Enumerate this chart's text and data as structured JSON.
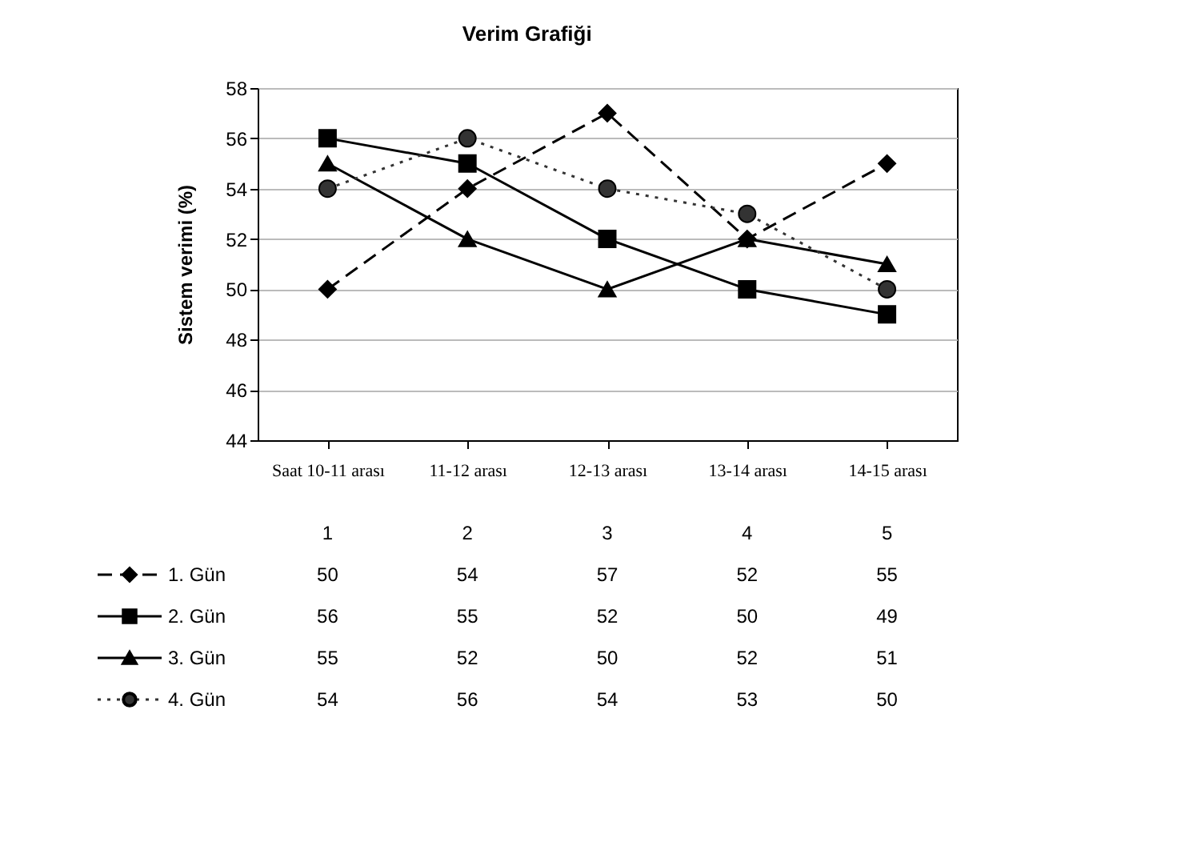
{
  "chart_data": {
    "type": "line",
    "title": "Verim Grafiği",
    "ylabel": "Sistem verimi (%)",
    "categories": [
      "Saat 10-11 arası",
      "11-12  arası",
      "12-13 arası",
      "13-14 arası",
      "14-15 arası"
    ],
    "series": [
      {
        "name": "1. Gün",
        "color": "#000000",
        "marker": "diamond",
        "line_style": "dashed",
        "values": [
          50,
          54,
          57,
          52,
          55
        ]
      },
      {
        "name": "2. Gün",
        "color": "#000000",
        "marker": "square",
        "line_style": "solid",
        "values": [
          56,
          55,
          52,
          50,
          49
        ]
      },
      {
        "name": "3. Gün",
        "color": "#000000",
        "marker": "triangle",
        "line_style": "solid",
        "values": [
          55,
          52,
          50,
          52,
          51
        ]
      },
      {
        "name": "4. Gün",
        "color": "#333333",
        "marker": "circle",
        "line_style": "dotted",
        "values": [
          54,
          56,
          54,
          53,
          50
        ]
      }
    ],
    "ylim": [
      44,
      58
    ],
    "yticks": [
      44,
      46,
      48,
      50,
      52,
      54,
      56,
      58
    ],
    "grid": "y",
    "legend": "bottom",
    "data_labels": true,
    "annotations": [
      "1",
      "2",
      "3",
      "4",
      "5"
    ]
  }
}
